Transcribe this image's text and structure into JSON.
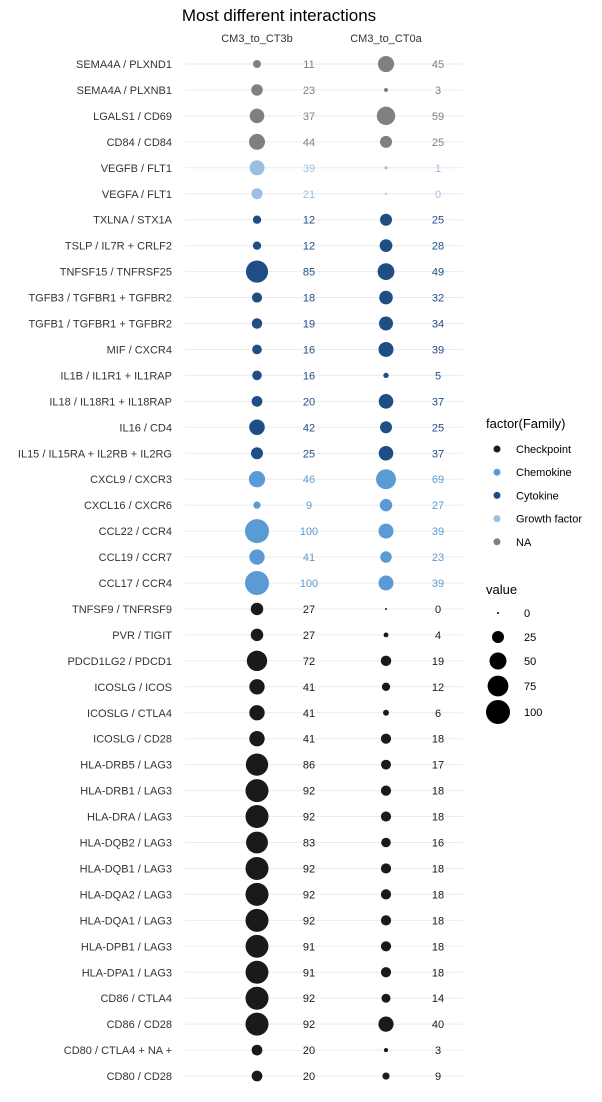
{
  "chart_data": {
    "type": "scatter",
    "title": "Most different interactions",
    "columns": [
      "CM3_to_CT3b",
      "CM3_to_CT0a"
    ],
    "rows": [
      {
        "label": "SEMA4A / PLXND1",
        "family": "NA",
        "values": [
          11,
          45
        ]
      },
      {
        "label": "SEMA4A / PLXNB1",
        "family": "NA",
        "values": [
          23,
          3
        ]
      },
      {
        "label": "LGALS1 / CD69",
        "family": "NA",
        "values": [
          37,
          59
        ]
      },
      {
        "label": "CD84 / CD84",
        "family": "NA",
        "values": [
          44,
          25
        ]
      },
      {
        "label": "VEGFB / FLT1",
        "family": "Growth factor",
        "values": [
          39,
          1
        ]
      },
      {
        "label": "VEGFA / FLT1",
        "family": "Growth factor",
        "values": [
          21,
          0
        ]
      },
      {
        "label": "TXLNA / STX1A",
        "family": "Cytokine",
        "values": [
          12,
          25
        ]
      },
      {
        "label": "TSLP / IL7R + CRLF2",
        "family": "Cytokine",
        "values": [
          12,
          28
        ]
      },
      {
        "label": "TNFSF15 / TNFRSF25",
        "family": "Cytokine",
        "values": [
          85,
          49
        ]
      },
      {
        "label": "TGFB3 / TGFBR1 + TGFBR2",
        "family": "Cytokine",
        "values": [
          18,
          32
        ]
      },
      {
        "label": "TGFB1 / TGFBR1 + TGFBR2",
        "family": "Cytokine",
        "values": [
          19,
          34
        ]
      },
      {
        "label": "MIF / CXCR4",
        "family": "Cytokine",
        "values": [
          16,
          39
        ]
      },
      {
        "label": "IL1B / IL1R1 + IL1RAP",
        "family": "Cytokine",
        "values": [
          16,
          5
        ]
      },
      {
        "label": "IL18 / IL18R1 + IL18RAP",
        "family": "Cytokine",
        "values": [
          20,
          37
        ]
      },
      {
        "label": "IL16 / CD4",
        "family": "Cytokine",
        "values": [
          42,
          25
        ]
      },
      {
        "label": "IL15 / IL15RA + IL2RB + IL2RG",
        "family": "Cytokine",
        "values": [
          25,
          37
        ]
      },
      {
        "label": "CXCL9 / CXCR3",
        "family": "Chemokine",
        "values": [
          46,
          69
        ]
      },
      {
        "label": "CXCL16 / CXCR6",
        "family": "Chemokine",
        "values": [
          9,
          27
        ]
      },
      {
        "label": "CCL22 / CCR4",
        "family": "Chemokine",
        "values": [
          100,
          39
        ]
      },
      {
        "label": "CCL19 / CCR7",
        "family": "Chemokine",
        "values": [
          41,
          23
        ]
      },
      {
        "label": "CCL17 / CCR4",
        "family": "Chemokine",
        "values": [
          100,
          39
        ]
      },
      {
        "label": "TNFSF9 / TNFRSF9",
        "family": "Checkpoint",
        "values": [
          27,
          0
        ]
      },
      {
        "label": "PVR / TIGIT",
        "family": "Checkpoint",
        "values": [
          27,
          4
        ]
      },
      {
        "label": "PDCD1LG2 / PDCD1",
        "family": "Checkpoint",
        "values": [
          72,
          19
        ]
      },
      {
        "label": "ICOSLG / ICOS",
        "family": "Checkpoint",
        "values": [
          41,
          12
        ]
      },
      {
        "label": "ICOSLG / CTLA4",
        "family": "Checkpoint",
        "values": [
          41,
          6
        ]
      },
      {
        "label": "ICOSLG / CD28",
        "family": "Checkpoint",
        "values": [
          41,
          18
        ]
      },
      {
        "label": "HLA-DRB5 / LAG3",
        "family": "Checkpoint",
        "values": [
          86,
          17
        ]
      },
      {
        "label": "HLA-DRB1 / LAG3",
        "family": "Checkpoint",
        "values": [
          92,
          18
        ]
      },
      {
        "label": "HLA-DRA / LAG3",
        "family": "Checkpoint",
        "values": [
          92,
          18
        ]
      },
      {
        "label": "HLA-DQB2 / LAG3",
        "family": "Checkpoint",
        "values": [
          83,
          16
        ]
      },
      {
        "label": "HLA-DQB1 / LAG3",
        "family": "Checkpoint",
        "values": [
          92,
          18
        ]
      },
      {
        "label": "HLA-DQA2 / LAG3",
        "family": "Checkpoint",
        "values": [
          92,
          18
        ]
      },
      {
        "label": "HLA-DQA1 / LAG3",
        "family": "Checkpoint",
        "values": [
          92,
          18
        ]
      },
      {
        "label": "HLA-DPB1 / LAG3",
        "family": "Checkpoint",
        "values": [
          91,
          18
        ]
      },
      {
        "label": "HLA-DPA1 / LAG3",
        "family": "Checkpoint",
        "values": [
          91,
          18
        ]
      },
      {
        "label": "CD86 / CTLA4",
        "family": "Checkpoint",
        "values": [
          92,
          14
        ]
      },
      {
        "label": "CD86 / CD28",
        "family": "Checkpoint",
        "values": [
          92,
          40
        ]
      },
      {
        "label": "CD80 / CTLA4 + NA +",
        "family": "Checkpoint",
        "values": [
          20,
          3
        ]
      },
      {
        "label": "CD80 / CD28",
        "family": "Checkpoint",
        "values": [
          20,
          9
        ]
      }
    ],
    "legend_color": {
      "title": "factor(Family)",
      "entries": [
        {
          "name": "Checkpoint",
          "color": "#1a1a1a"
        },
        {
          "name": "Chemokine",
          "color": "#5b9bd5"
        },
        {
          "name": "Cytokine",
          "color": "#1f4e87"
        },
        {
          "name": "Growth factor",
          "color": "#9bbfe0"
        },
        {
          "name": "NA",
          "color": "#808080"
        }
      ]
    },
    "legend_size": {
      "title": "value",
      "entries": [
        0,
        25,
        50,
        75,
        100
      ]
    },
    "label_colors": {
      "Checkpoint": "#1a1a1a",
      "Chemokine": "#5b9bd5",
      "Cytokine": "#1f4e87",
      "Growth factor": "#9bbfe0",
      "NA": "#808080"
    },
    "grid": true,
    "legend_position": "right"
  }
}
